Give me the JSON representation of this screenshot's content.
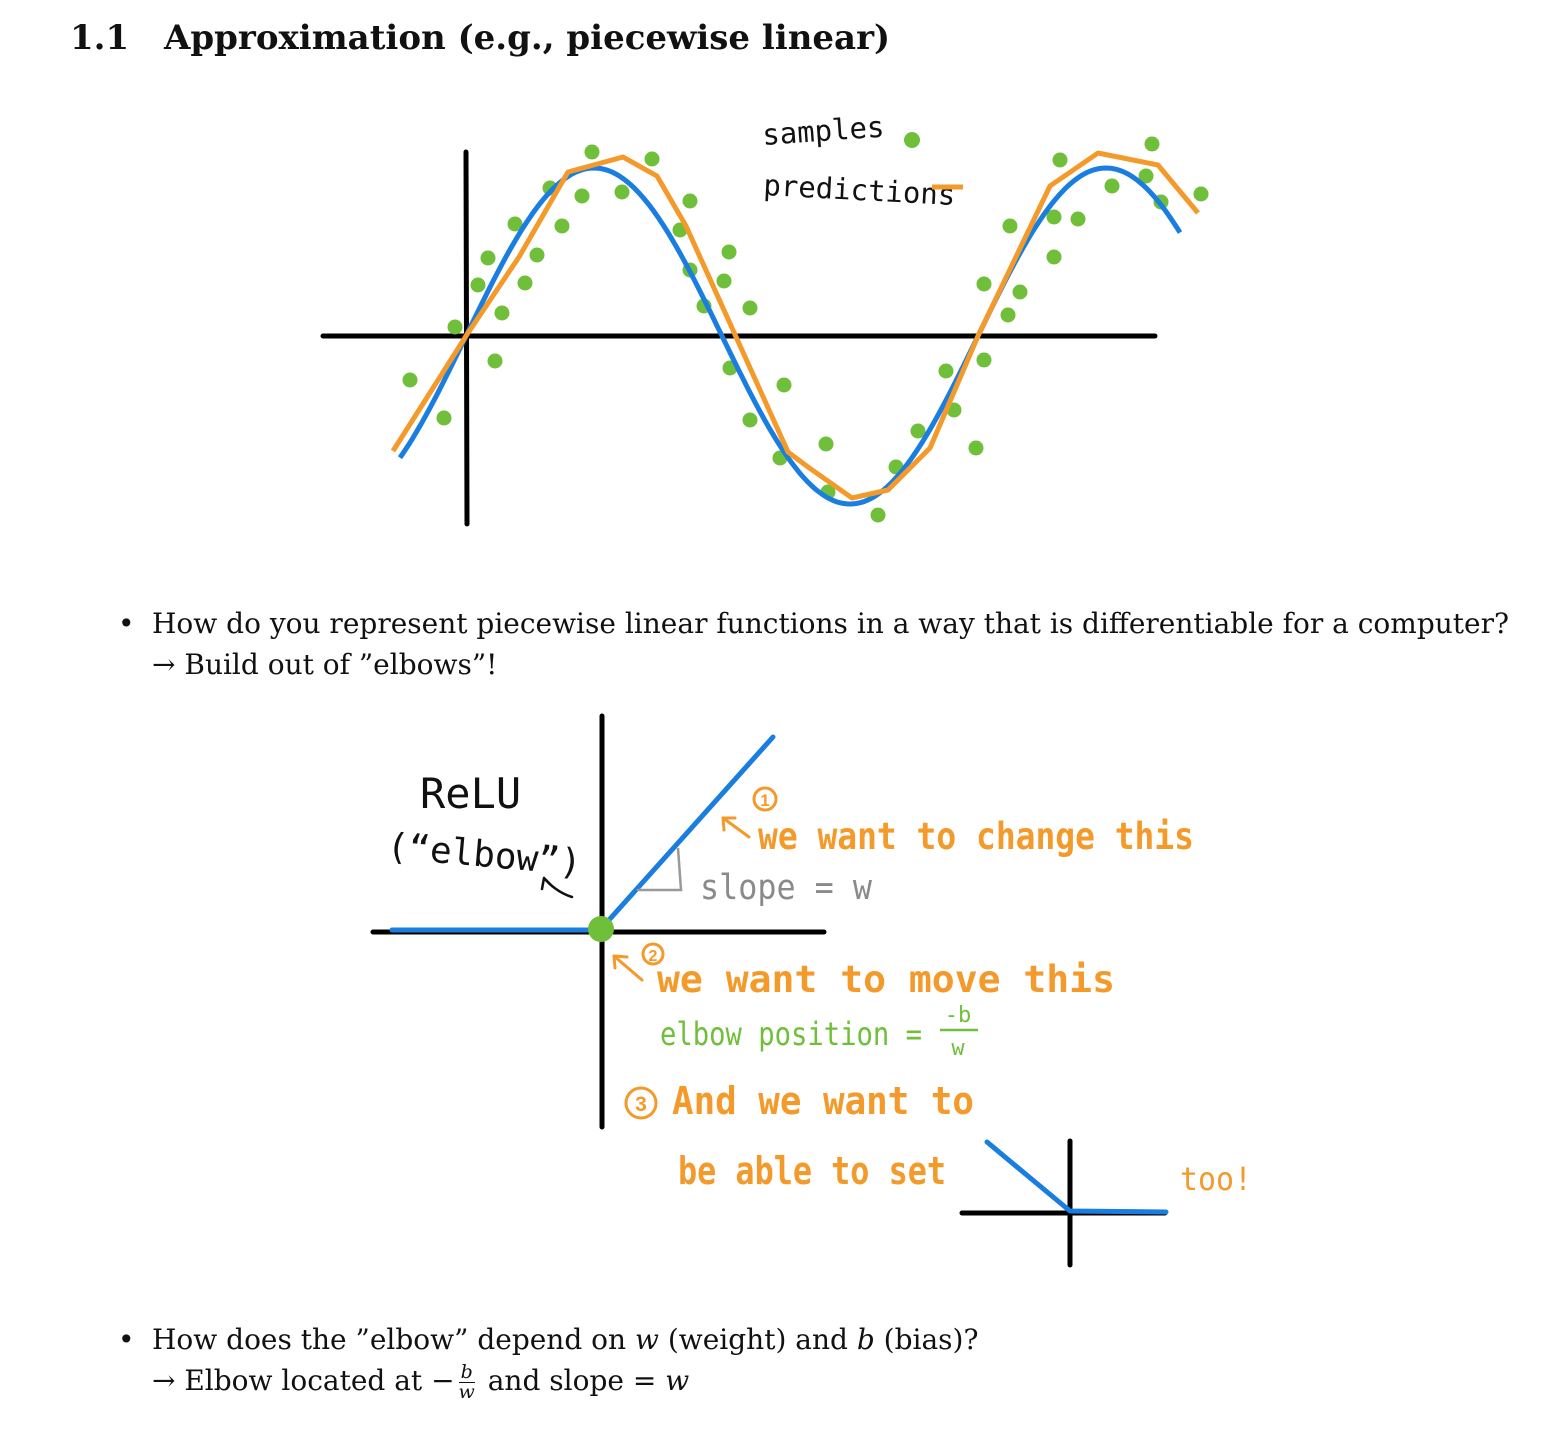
{
  "section": {
    "number": "1.1",
    "title": "Approximation (e.g., piecewise linear)"
  },
  "figure1": {
    "legend_samples": "samples",
    "legend_predictions": "predictions",
    "colors": {
      "samples": "#6fbf3a",
      "predictions": "#f39a2b",
      "true_curve": "#1a7de0",
      "axes": "#000000"
    }
  },
  "bullet1": {
    "question": "How do you represent piecewise linear functions in a way that is differentiable for a computer?",
    "answer": "→ Build out of ”elbows”!"
  },
  "figure2": {
    "relu_label": "ReLU",
    "elbow_label": "(“elbow”)",
    "n1": "1",
    "annot1": "we want to change this",
    "slope_label": "slope = w",
    "n2": "2",
    "annot2": "we want to move this",
    "elbow_pos_label": "elbow position =",
    "elbow_pos_num": "-b",
    "elbow_pos_den": "w",
    "n3": "3",
    "annot3a": "And we want to",
    "annot3b": "be able to set",
    "annot3c": "too!",
    "colors": {
      "relu": "#1a7de0",
      "annotation": "#f39a2b",
      "elbow_text": "#6fbf3a",
      "slope_text": "#8a8a8a"
    }
  },
  "bullet2": {
    "question_a": "How does the ”elbow” depend on ",
    "w_sym": "w",
    "question_b": " (weight) and ",
    "b_sym": "b",
    "question_c": " (bias)?",
    "answer_a": "→ Elbow located at −",
    "frac_num": "b",
    "frac_den": "w",
    "answer_b": " and slope = ",
    "w_sym2": "w"
  }
}
